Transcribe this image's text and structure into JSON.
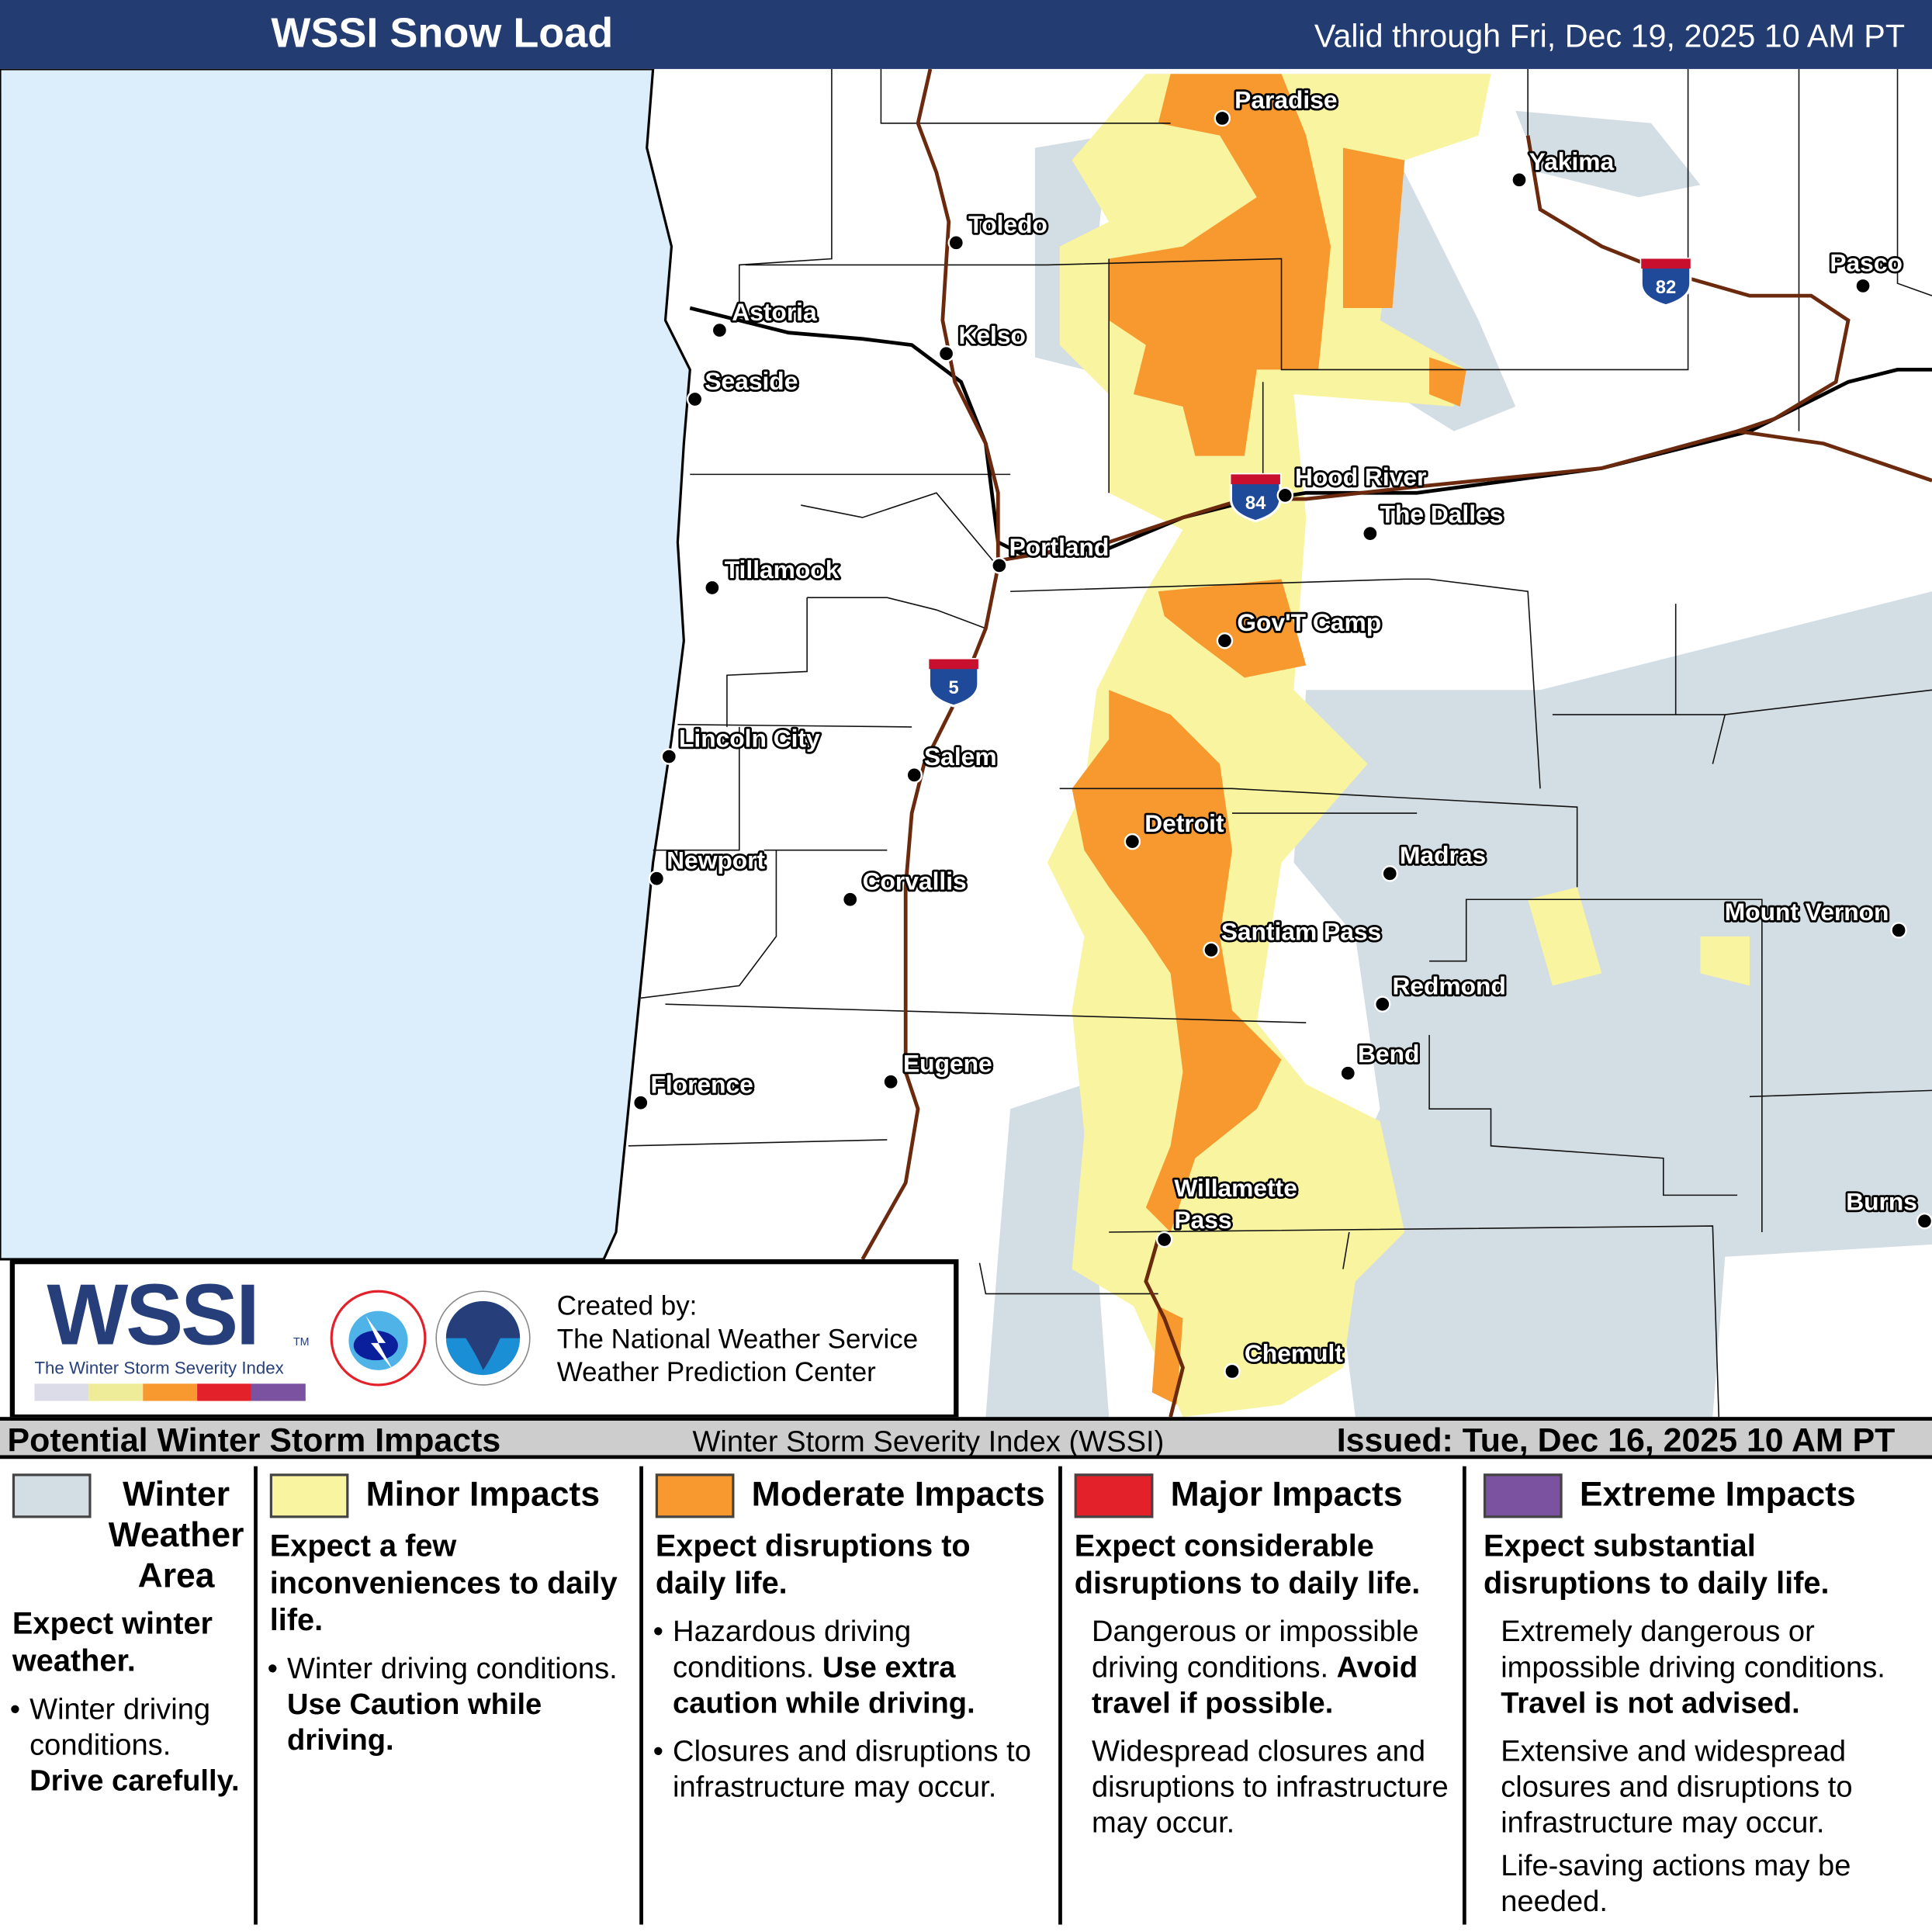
{
  "header": {
    "title": "WSSI Snow Load",
    "valid": "Valid through Fri, Dec 19, 2025 10 AM PT"
  },
  "colors": {
    "header": "#233c72",
    "ocean": "#dcedfb",
    "winter_weather_area": "#d3dde4",
    "minor": "#f8f4a0",
    "moderate": "#f7992f",
    "major": "#e3212a",
    "extreme": "#7a52a0",
    "highway": "#6b2a0e"
  },
  "map": {
    "cities": [
      {
        "name": "Paradise"
      },
      {
        "name": "Yakima"
      },
      {
        "name": "Toledo"
      },
      {
        "name": "Pasco"
      },
      {
        "name": "Astoria"
      },
      {
        "name": "Kelso"
      },
      {
        "name": "Seaside"
      },
      {
        "name": "Hood River"
      },
      {
        "name": "The Dalles"
      },
      {
        "name": "Portland"
      },
      {
        "name": "Tillamook"
      },
      {
        "name": "Gov'T Camp"
      },
      {
        "name": "Salem"
      },
      {
        "name": "Lincoln City"
      },
      {
        "name": "Detroit"
      },
      {
        "name": "Madras"
      },
      {
        "name": "Newport"
      },
      {
        "name": "Corvallis"
      },
      {
        "name": "Mount Vernon"
      },
      {
        "name": "Santiam Pass"
      },
      {
        "name": "Redmond"
      },
      {
        "name": "Bend"
      },
      {
        "name": "Eugene"
      },
      {
        "name": "Florence"
      },
      {
        "name": "Burns"
      },
      {
        "name": "Willamette"
      },
      {
        "name": "Pass"
      },
      {
        "name": "Chemult"
      }
    ],
    "interstates": [
      "82",
      "84",
      "5"
    ]
  },
  "logo": {
    "wssi": "WSSI",
    "tm": "TM",
    "subtitle": "The Winter Storm Severity Index",
    "created_by": "Created by:",
    "org1": "The National Weather Service",
    "org2": "Weather Prediction Center"
  },
  "bar": {
    "left": "Potential Winter Storm Impacts",
    "mid": "Winter Storm Severity Index (WSSI)",
    "right": "Issued: Tue, Dec 16, 2025 10 AM PT"
  },
  "legend": [
    {
      "title": "Winter Weather Area",
      "t1": "Winter",
      "t2": "Weather",
      "t3": "Area",
      "head": "Expect winter weather.",
      "b1": "Winter driving conditions.",
      "b1_bold": "Drive carefully."
    },
    {
      "title": "Minor Impacts",
      "head": "Expect a few inconveniences to daily life.",
      "b1": "Winter driving conditions.",
      "b1_bold": "Use Caution while driving."
    },
    {
      "title": "Moderate Impacts",
      "head": "Expect disruptions to daily life.",
      "b1": "Hazardous driving conditions.",
      "b1_bold": "Use extra caution while driving.",
      "b2": "Closures and disruptions to infrastructure may occur."
    },
    {
      "title": "Major Impacts",
      "head": "Expect considerable disruptions to daily life.",
      "p1": "Dangerous or impossible driving conditions.",
      "p1_bold": "Avoid travel if possible.",
      "p2": "Widespread closures and disruptions to infrastructure may occur."
    },
    {
      "title": "Extreme Impacts",
      "head": "Expect substantial disruptions to daily life.",
      "p1": "Extremely dangerous or impossible driving conditions.",
      "p1_bold": "Travel is not advised.",
      "p2": "Extensive and widespread closures and disruptions to infrastructure may occur.",
      "p3": "Life-saving actions may be needed."
    }
  ]
}
